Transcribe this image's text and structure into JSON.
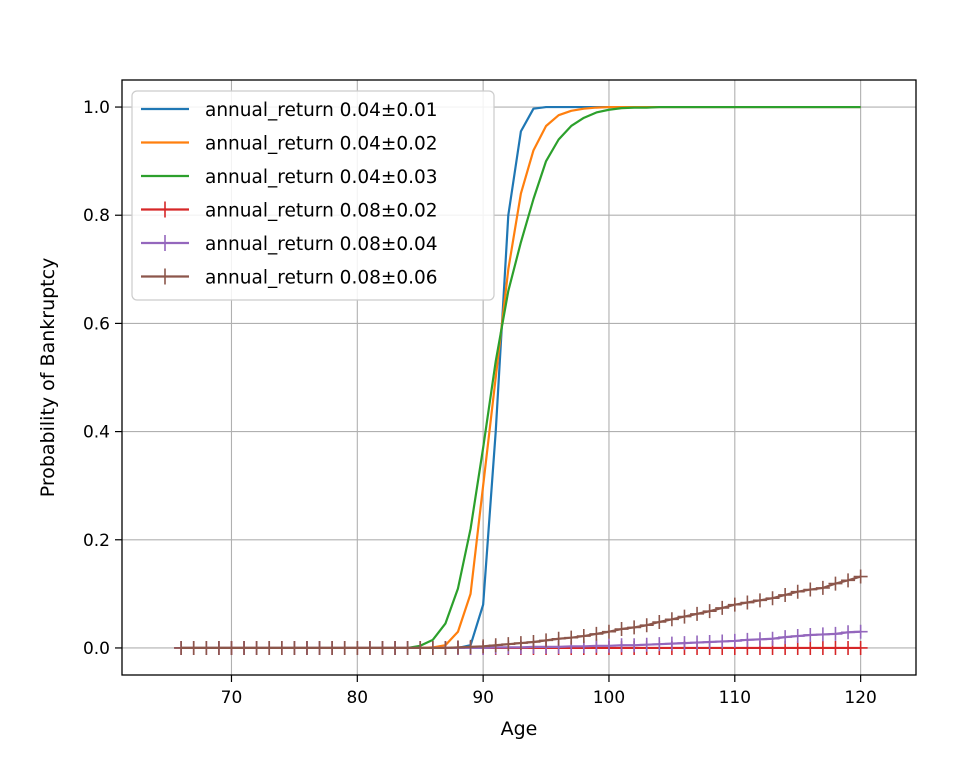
{
  "chart_data": {
    "type": "line",
    "xlabel": "Age",
    "ylabel": "Probability of Bankruptcy",
    "xlim": [
      61.3,
      124.4
    ],
    "ylim": [
      -0.05,
      1.05
    ],
    "xticks": [
      70,
      80,
      90,
      100,
      110,
      120
    ],
    "xtick_labels": [
      "70",
      "80",
      "90",
      "100",
      "110",
      "120"
    ],
    "yticks": [
      0.0,
      0.2,
      0.4,
      0.6,
      0.8,
      1.0
    ],
    "ytick_labels": [
      "0.0",
      "0.2",
      "0.4",
      "0.6",
      "0.8",
      "1.0"
    ],
    "grid": true,
    "legend_position": "upper-left",
    "series": [
      {
        "name": "annual_return 0.04±0.01",
        "color": "#1f77b4",
        "marker": "none",
        "x": [
          66,
          85,
          88,
          89,
          90,
          91,
          92,
          93,
          94,
          95,
          96,
          120
        ],
        "y": [
          0.0,
          0.0,
          0.0,
          0.005,
          0.08,
          0.4,
          0.8,
          0.955,
          0.997,
          1.0,
          1.0,
          1.0
        ]
      },
      {
        "name": "annual_return 0.04±0.02",
        "color": "#ff7f0e",
        "marker": "none",
        "x": [
          66,
          85,
          86,
          87,
          88,
          89,
          90,
          91,
          92,
          93,
          94,
          95,
          96,
          97,
          98,
          99,
          100,
          101,
          102,
          120
        ],
        "y": [
          0.0,
          0.0,
          0.001,
          0.005,
          0.03,
          0.1,
          0.3,
          0.5,
          0.7,
          0.84,
          0.92,
          0.965,
          0.985,
          0.993,
          0.997,
          0.999,
          1.0,
          1.0,
          1.0,
          1.0
        ]
      },
      {
        "name": "annual_return 0.04±0.03",
        "color": "#2ca02c",
        "marker": "none",
        "x": [
          66,
          84,
          85,
          86,
          87,
          88,
          89,
          90,
          91,
          92,
          93,
          94,
          95,
          96,
          97,
          98,
          99,
          100,
          101,
          102,
          103,
          104,
          105,
          120
        ],
        "y": [
          0.0,
          0.0,
          0.004,
          0.015,
          0.045,
          0.11,
          0.22,
          0.37,
          0.53,
          0.66,
          0.75,
          0.83,
          0.9,
          0.94,
          0.965,
          0.98,
          0.99,
          0.995,
          0.998,
          0.999,
          0.999,
          1.0,
          1.0,
          1.0
        ]
      },
      {
        "name": "annual_return 0.08±0.02",
        "color": "#d62728",
        "marker": "plus",
        "x": [
          66,
          67,
          68,
          69,
          70,
          71,
          72,
          73,
          74,
          75,
          76,
          77,
          78,
          79,
          80,
          81,
          82,
          83,
          84,
          85,
          86,
          87,
          88,
          89,
          90,
          91,
          92,
          93,
          94,
          95,
          96,
          97,
          98,
          99,
          100,
          101,
          102,
          103,
          104,
          105,
          106,
          107,
          108,
          109,
          110,
          111,
          112,
          113,
          114,
          115,
          116,
          117,
          118,
          119,
          120
        ],
        "y": [
          0,
          0,
          0,
          0,
          0,
          0,
          0,
          0,
          0,
          0,
          0,
          0,
          0,
          0,
          0,
          0,
          0,
          0,
          0,
          0,
          0,
          0,
          0,
          0,
          0,
          0,
          0,
          0,
          0,
          0,
          0,
          0,
          0,
          0,
          0,
          0,
          0,
          0,
          0,
          0,
          0,
          0,
          0,
          0,
          0,
          0,
          0,
          0,
          0,
          0,
          0,
          0,
          0,
          0,
          0
        ]
      },
      {
        "name": "annual_return 0.08±0.04",
        "color": "#9467bd",
        "marker": "plus",
        "x": [
          66,
          67,
          68,
          69,
          70,
          71,
          72,
          73,
          74,
          75,
          76,
          77,
          78,
          79,
          80,
          81,
          82,
          83,
          84,
          85,
          86,
          87,
          88,
          89,
          90,
          91,
          92,
          93,
          94,
          95,
          96,
          97,
          98,
          99,
          100,
          101,
          102,
          103,
          104,
          105,
          106,
          107,
          108,
          109,
          110,
          111,
          112,
          113,
          114,
          115,
          116,
          117,
          118,
          119,
          120
        ],
        "y": [
          0,
          0,
          0,
          0,
          0,
          0,
          0,
          0,
          0,
          0,
          0,
          0,
          0,
          0,
          0,
          0,
          0,
          0,
          0,
          0,
          0,
          0,
          0,
          0,
          0,
          0.001,
          0.001,
          0.001,
          0.002,
          0.002,
          0.002,
          0.003,
          0.003,
          0.004,
          0.004,
          0.005,
          0.005,
          0.006,
          0.007,
          0.008,
          0.009,
          0.01,
          0.011,
          0.012,
          0.013,
          0.015,
          0.016,
          0.017,
          0.02,
          0.022,
          0.024,
          0.025,
          0.026,
          0.029,
          0.03
        ]
      },
      {
        "name": "annual_return 0.08±0.06",
        "color": "#8c564b",
        "marker": "plus",
        "x": [
          66,
          67,
          68,
          69,
          70,
          71,
          72,
          73,
          74,
          75,
          76,
          77,
          78,
          79,
          80,
          81,
          82,
          83,
          84,
          85,
          86,
          87,
          88,
          89,
          90,
          91,
          92,
          93,
          94,
          95,
          96,
          97,
          98,
          99,
          100,
          101,
          102,
          103,
          104,
          105,
          106,
          107,
          108,
          109,
          110,
          111,
          112,
          113,
          114,
          115,
          116,
          117,
          118,
          119,
          120
        ],
        "y": [
          0,
          0,
          0,
          0,
          0,
          0,
          0,
          0,
          0,
          0,
          0,
          0,
          0,
          0,
          0,
          0,
          0,
          0,
          0,
          0,
          0,
          0,
          0.001,
          0.002,
          0.003,
          0.005,
          0.007,
          0.009,
          0.011,
          0.014,
          0.017,
          0.019,
          0.022,
          0.026,
          0.03,
          0.035,
          0.038,
          0.042,
          0.048,
          0.053,
          0.058,
          0.063,
          0.068,
          0.074,
          0.08,
          0.084,
          0.088,
          0.092,
          0.098,
          0.104,
          0.108,
          0.111,
          0.119,
          0.125,
          0.132
        ]
      }
    ]
  }
}
